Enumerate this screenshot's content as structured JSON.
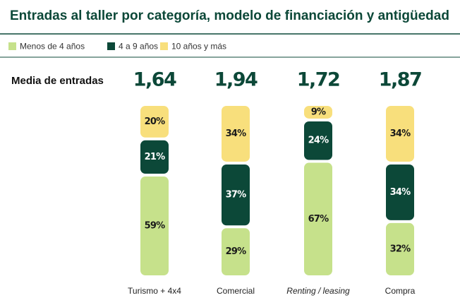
{
  "chart_data": {
    "type": "bar",
    "stacked": true,
    "title": "Entradas al taller por categoría, modelo de financiación y antigüedad",
    "categories": [
      "Turismo + 4x4",
      "Comercial",
      "Renting / leasing",
      "Compra"
    ],
    "ylim": [
      0,
      100
    ],
    "series": [
      {
        "name": "Menos de 4 años",
        "color": "#c6e18b",
        "values": [
          59,
          29,
          67,
          32
        ],
        "value_labels": [
          "59%",
          "29%",
          "67%",
          "32%"
        ]
      },
      {
        "name": "4 a 9 años",
        "color": "#0c4838",
        "values": [
          21,
          37,
          24,
          34
        ],
        "value_labels": [
          "21%",
          "37%",
          "24%",
          "34%"
        ]
      },
      {
        "name": "10 años y más",
        "color": "#f8df7c",
        "values": [
          20,
          34,
          9,
          34
        ],
        "value_labels": [
          "20%",
          "34%",
          "9%",
          "34%"
        ]
      }
    ],
    "averages": {
      "label": "Media de entradas",
      "values": [
        1.64,
        1.94,
        1.72,
        1.87
      ],
      "value_labels": [
        "1,64",
        "1,94",
        "1,72",
        "1,87"
      ]
    }
  }
}
